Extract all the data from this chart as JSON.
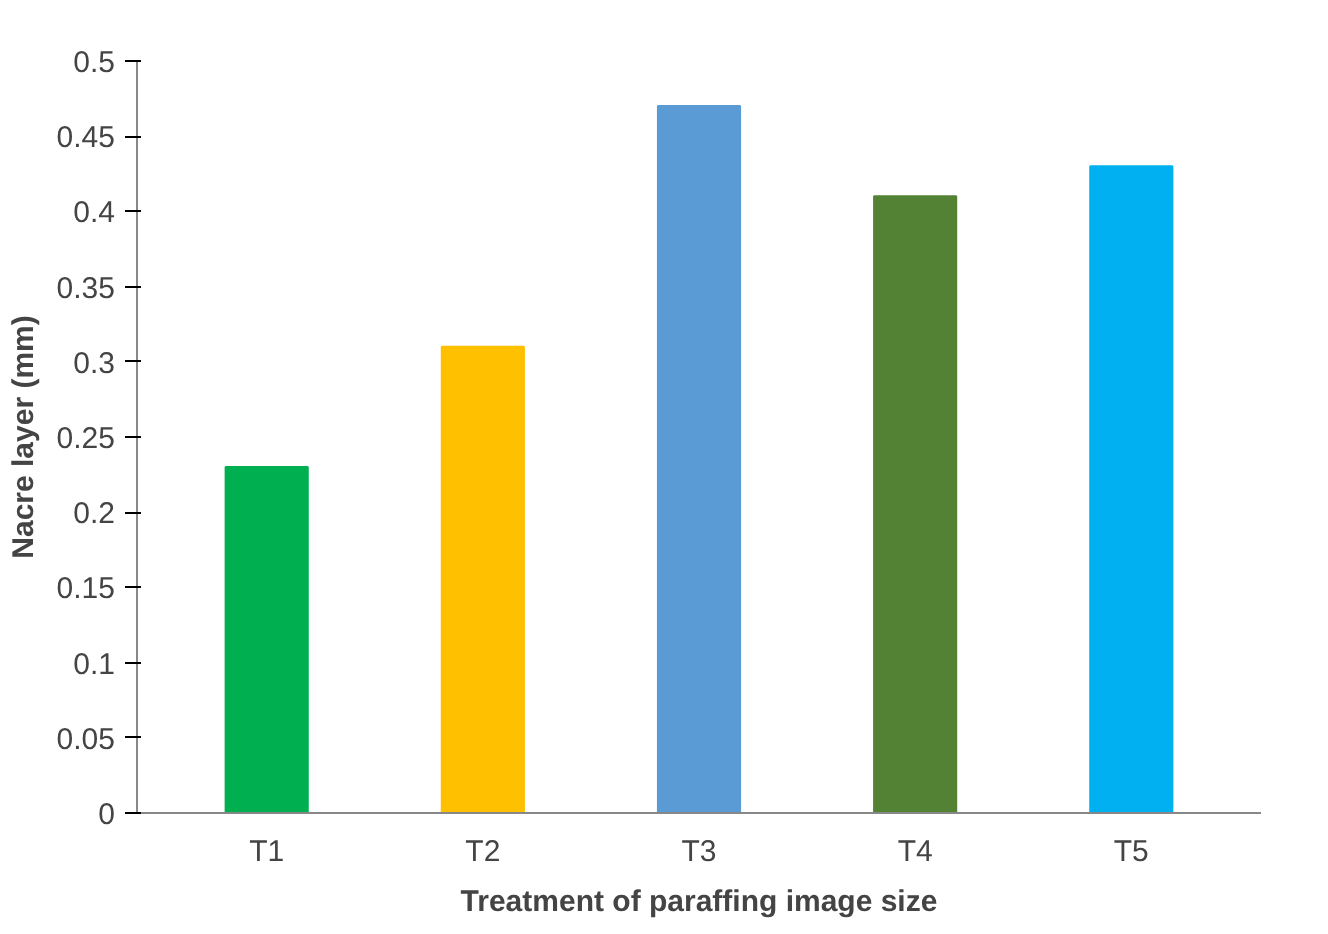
{
  "chart_data": {
    "type": "bar",
    "xlabel": "Treatment of paraffing image size",
    "ylabel": "Nacre layer (mm)",
    "categories": [
      "T1",
      "T2",
      "T3",
      "T4",
      "T5"
    ],
    "values": [
      0.23,
      0.31,
      0.47,
      0.41,
      0.43
    ],
    "colors": [
      "#00b050",
      "#ffc000",
      "#5b9bd5",
      "#548235",
      "#00b0f0"
    ],
    "ylim": [
      0,
      0.5
    ],
    "yticks": [
      0,
      0.05,
      0.1,
      0.15,
      0.2,
      0.25,
      0.3,
      0.35,
      0.4,
      0.45,
      0.5
    ],
    "grid": false
  }
}
